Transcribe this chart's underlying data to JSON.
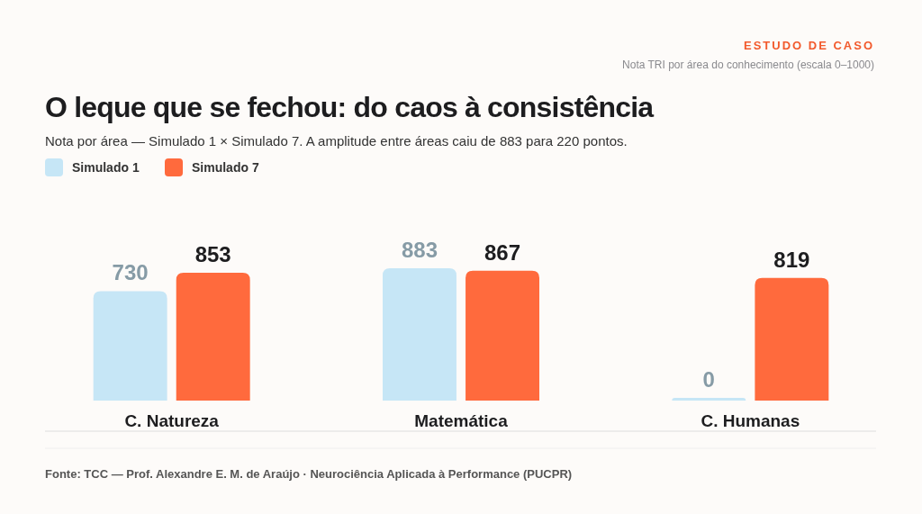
{
  "chart_data": {
    "type": "bar",
    "title": "O leque que se fechou: do caos à consistência",
    "subtitle": "Nota por área — Simulado 1 × Simulado 7. A amplitude entre áreas caiu de 883 para 220 pontos.",
    "annotations": [
      "ESTUDO DE CASO",
      "Nota TRI por área do conhecimento (escala 0–1000)",
      "Fonte: TCC — Prof. Alexandre E. M. de Araújo · Neurociência Aplicada à Performance (PUCPR)"
    ],
    "categories": [
      "C. Natureza",
      "Matemática",
      "C. Humanas"
    ],
    "series": [
      {
        "name": "Simulado 1",
        "color": "#c6e6f6",
        "values": [
          730,
          883,
          0
        ]
      },
      {
        "name": "Simulado 7",
        "color": "#ff6a3d",
        "values": [
          853,
          867,
          819
        ]
      }
    ],
    "data_labels": true,
    "legend": "top left"
  }
}
